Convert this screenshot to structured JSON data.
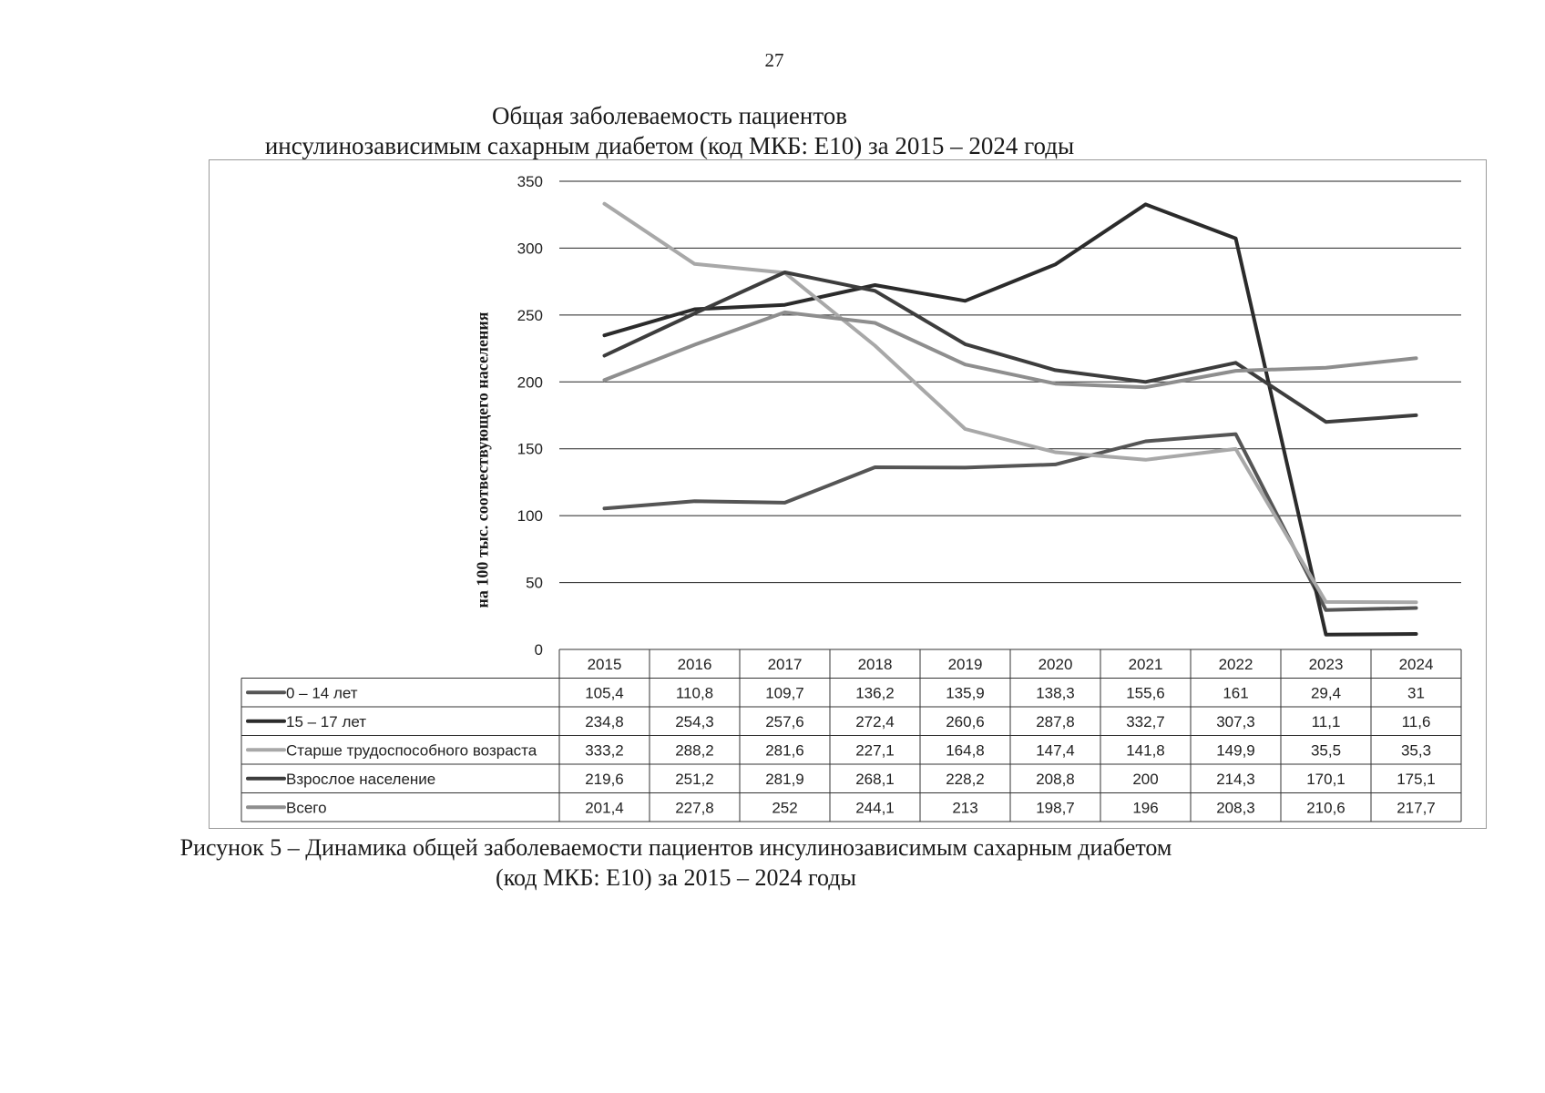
{
  "page": {
    "number": "27"
  },
  "header": {
    "title_line1": "Общая заболеваемость пациентов",
    "title_line2": "инсулинозависимым сахарным диабетом (код МКБ: Е10) за 2015 – 2024 годы"
  },
  "caption": {
    "line1": "Рисунок 5 – Динамика общей заболеваемости пациентов инсулинозависимым сахарным диабетом",
    "line2": "(код МКБ: Е10) за 2015 – 2024 годы"
  },
  "chart_data": {
    "type": "line",
    "title": "Общая заболеваемость пациентов инсулинозависимым сахарным диабетом (код МКБ: Е10) за 2015 – 2024 годы",
    "xlabel": "",
    "ylabel": "на 100 тыс. соотвествующего населения",
    "ylim": [
      0,
      350
    ],
    "yticks": [
      0,
      50,
      100,
      150,
      200,
      250,
      300,
      350
    ],
    "grid": "horizontal",
    "legend": "data-table-below",
    "categories": [
      "2015",
      "2016",
      "2017",
      "2018",
      "2019",
      "2020",
      "2021",
      "2022",
      "2023",
      "2024"
    ],
    "series": [
      {
        "name": "0 – 14 лет",
        "color": "#555555",
        "values": [
          105.4,
          110.8,
          109.7,
          136.2,
          135.9,
          138.3,
          155.6,
          161,
          29.4,
          31
        ],
        "labels": [
          "105,4",
          "110,8",
          "109,7",
          "136,2",
          "135,9",
          "138,3",
          "155,6",
          "161",
          "29,4",
          "31"
        ]
      },
      {
        "name": "15 – 17 лет",
        "color": "#2b2b2b",
        "values": [
          234.8,
          254.3,
          257.6,
          272.4,
          260.6,
          287.8,
          332.7,
          307.3,
          11.1,
          11.6
        ],
        "labels": [
          "234,8",
          "254,3",
          "257,6",
          "272,4",
          "260,6",
          "287,8",
          "332,7",
          "307,3",
          "11,1",
          "11,6"
        ]
      },
      {
        "name": "Старше трудоспособного возраста",
        "color": "#a8a8a8",
        "values": [
          333.2,
          288.2,
          281.6,
          227.1,
          164.8,
          147.4,
          141.8,
          149.9,
          35.5,
          35.3
        ],
        "labels": [
          "333,2",
          "288,2",
          "281,6",
          "227,1",
          "164,8",
          "147,4",
          "141,8",
          "149,9",
          "35,5",
          "35,3"
        ]
      },
      {
        "name": "Взрослое население",
        "color": "#3d3d3d",
        "values": [
          219.6,
          251.2,
          281.9,
          268.1,
          228.2,
          208.8,
          200,
          214.3,
          170.1,
          175.1
        ],
        "labels": [
          "219,6",
          "251,2",
          "281,9",
          "268,1",
          "228,2",
          "208,8",
          "200",
          "214,3",
          "170,1",
          "175,1"
        ]
      },
      {
        "name": "Всего",
        "color": "#8e8e8e",
        "values": [
          201.4,
          227.8,
          252,
          244.1,
          213,
          198.7,
          196,
          208.3,
          210.6,
          217.7
        ],
        "labels": [
          "201,4",
          "227,8",
          "252",
          "244,1",
          "213",
          "198,7",
          "196",
          "208,3",
          "210,6",
          "217,7"
        ]
      }
    ]
  }
}
